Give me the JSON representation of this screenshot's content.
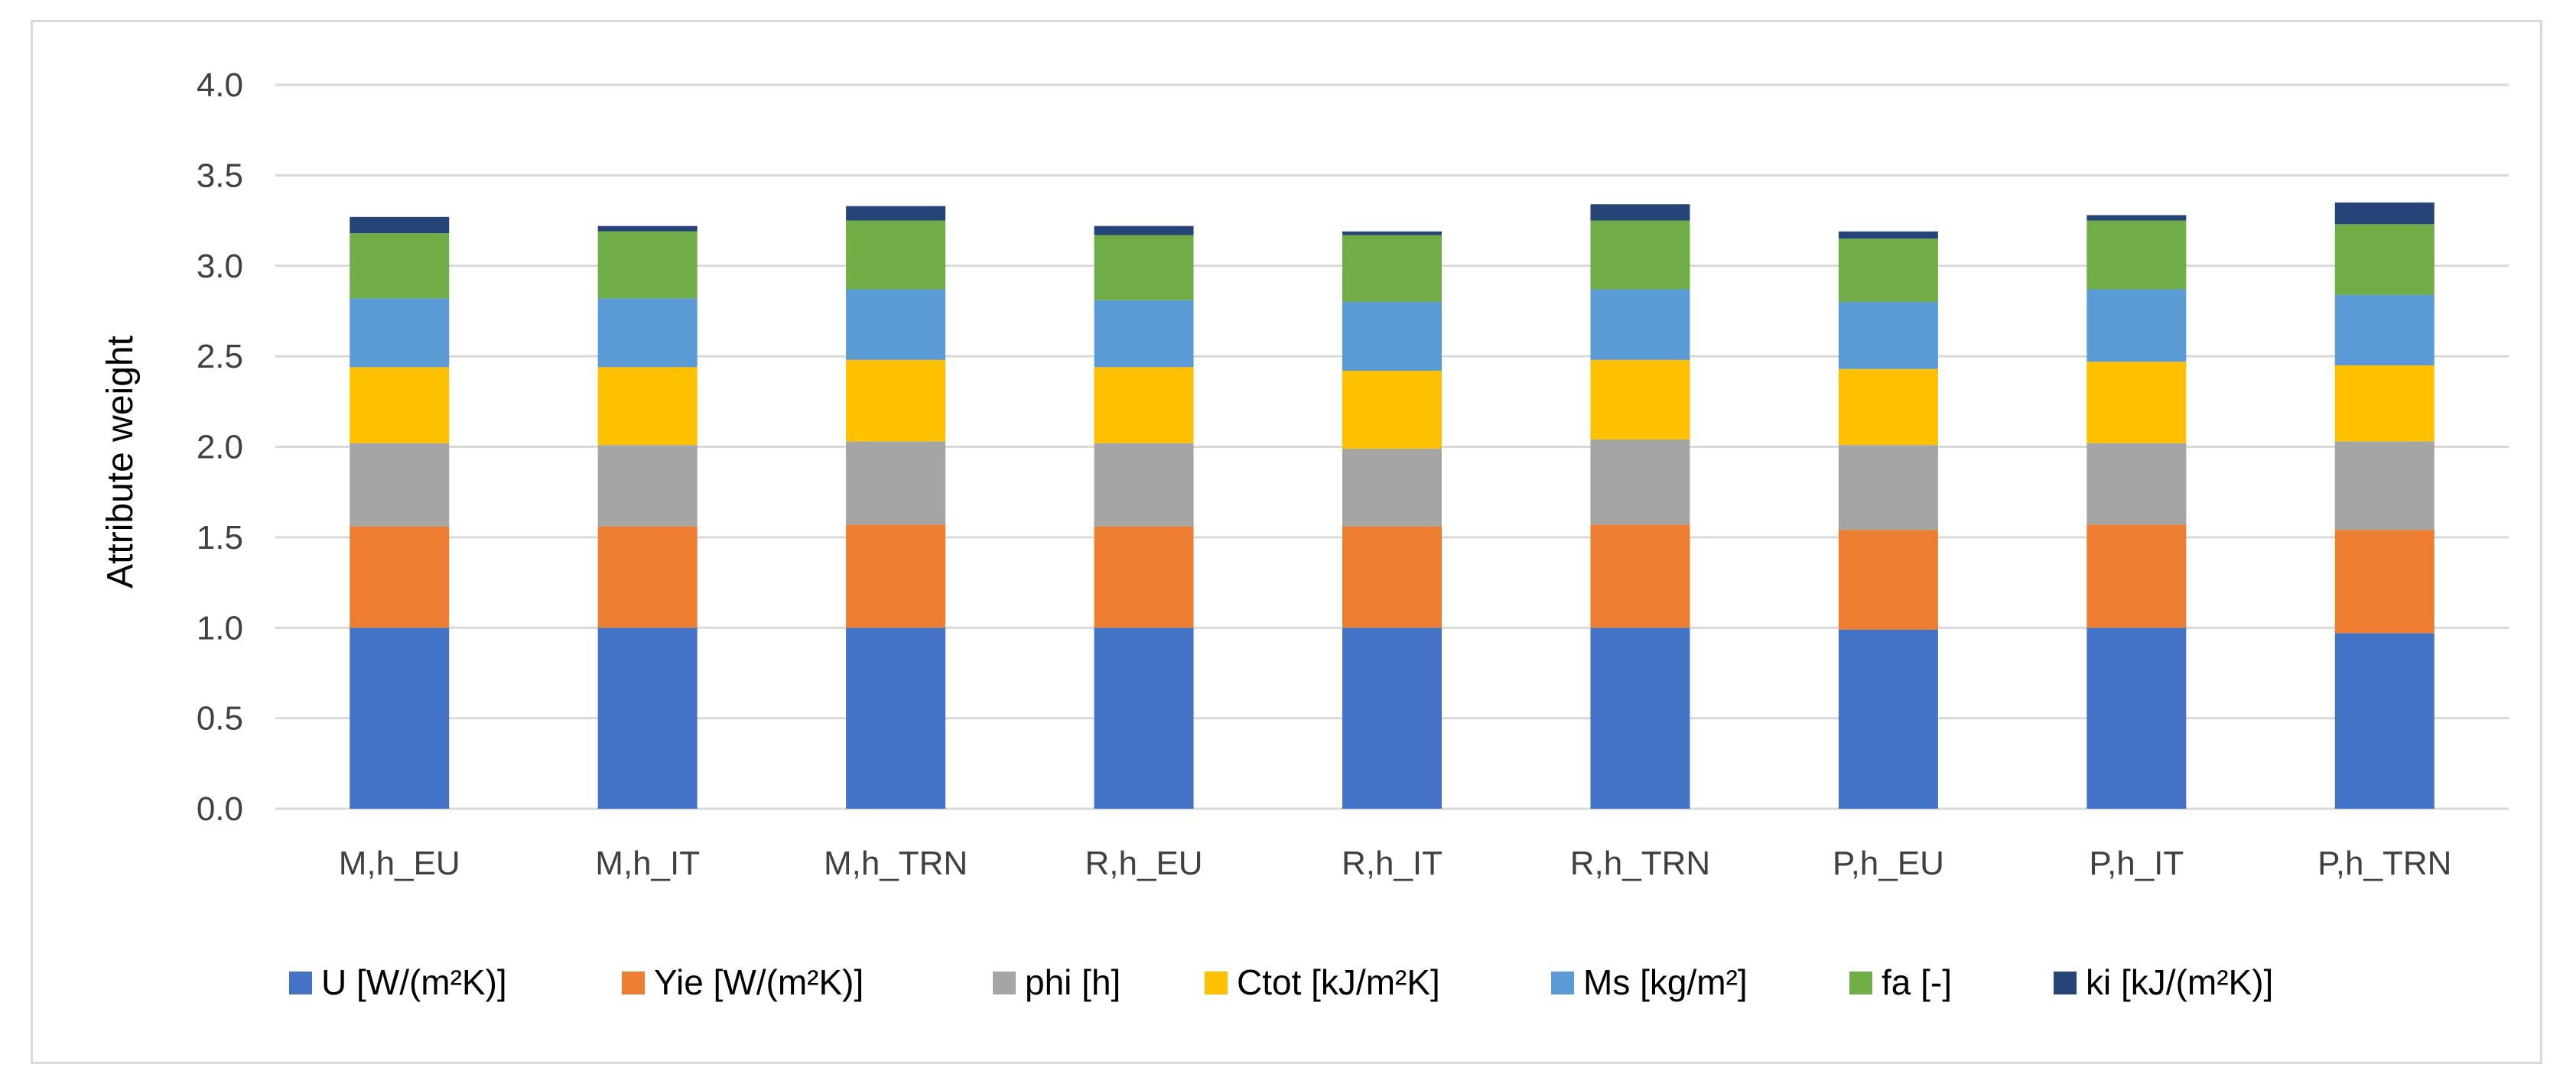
{
  "chart_data": {
    "type": "bar",
    "stacked": true,
    "title": "",
    "xlabel": "",
    "ylabel": "Attribute weight",
    "ylim": [
      0,
      4.0
    ],
    "yticks": [
      "0.0",
      "0.5",
      "1.0",
      "1.5",
      "2.0",
      "2.5",
      "3.0",
      "3.5",
      "4.0"
    ],
    "grid": true,
    "legend_position": "bottom",
    "categories": [
      "M,h_EU",
      "M,h_IT",
      "M,h_TRN",
      "R,h_EU",
      "R,h_IT",
      "R,h_TRN",
      "P,h_EU",
      "P,h_IT",
      "P,h_TRN"
    ],
    "series": [
      {
        "name": "U [W/(m²K)]",
        "color": "#4472C4",
        "values": [
          1.0,
          1.0,
          1.0,
          1.0,
          1.0,
          1.0,
          0.99,
          1.0,
          0.97
        ]
      },
      {
        "name": "Yie [W/(m²K)]",
        "color": "#ED7D31",
        "values": [
          0.56,
          0.56,
          0.57,
          0.56,
          0.56,
          0.57,
          0.55,
          0.57,
          0.57
        ]
      },
      {
        "name": "phi [h]",
        "color": "#A5A5A5",
        "values": [
          0.46,
          0.45,
          0.46,
          0.46,
          0.43,
          0.47,
          0.47,
          0.45,
          0.49
        ]
      },
      {
        "name": "Ctot [kJ/m²K]",
        "color": "#FFC000",
        "values": [
          0.42,
          0.43,
          0.45,
          0.42,
          0.43,
          0.44,
          0.42,
          0.45,
          0.42
        ]
      },
      {
        "name": "Ms [kg/m²]",
        "color": "#5B9BD5",
        "values": [
          0.38,
          0.38,
          0.39,
          0.37,
          0.38,
          0.39,
          0.37,
          0.4,
          0.39
        ]
      },
      {
        "name": "fa [-]",
        "color": "#70AD47",
        "values": [
          0.36,
          0.37,
          0.38,
          0.36,
          0.37,
          0.38,
          0.35,
          0.38,
          0.39
        ]
      },
      {
        "name": "ki [kJ/(m²K)]",
        "color": "#264478",
        "values": [
          0.09,
          0.03,
          0.08,
          0.05,
          0.02,
          0.09,
          0.04,
          0.03,
          0.12
        ]
      }
    ],
    "colors": {
      "grid": "#d9d9d9",
      "tick_text": "#404040",
      "frame": "#d9d9d9"
    }
  }
}
